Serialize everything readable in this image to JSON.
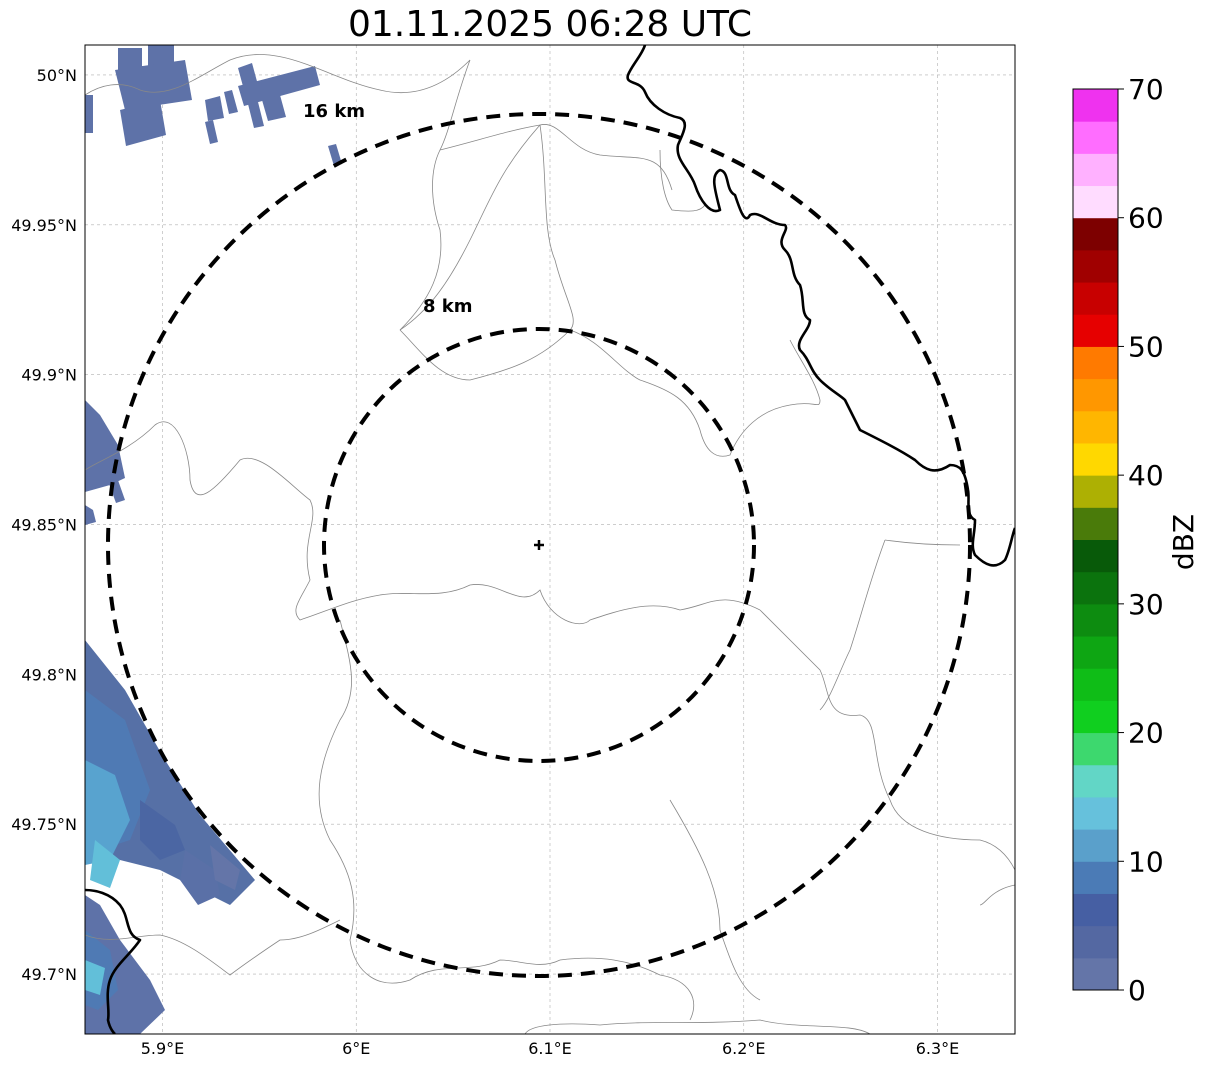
{
  "title": "01.11.2025 06:28 UTC",
  "map": {
    "lon_range": [
      5.86,
      6.34
    ],
    "lat_range": [
      49.68,
      50.01
    ],
    "lon_ticks": [
      {
        "value": 5.9,
        "label": "5.9°E"
      },
      {
        "value": 6.0,
        "label": "6°E"
      },
      {
        "value": 6.1,
        "label": "6.1°E"
      },
      {
        "value": 6.2,
        "label": "6.2°E"
      },
      {
        "value": 6.3,
        "label": "6.3°E"
      }
    ],
    "lat_ticks": [
      {
        "value": 50.0,
        "label": "50°N"
      },
      {
        "value": 49.95,
        "label": "49.95°N"
      },
      {
        "value": 49.9,
        "label": "49.9°N"
      },
      {
        "value": 49.85,
        "label": "49.85°N"
      },
      {
        "value": 49.8,
        "label": "49.8°N"
      },
      {
        "value": 49.75,
        "label": "49.75°N"
      },
      {
        "value": 49.7,
        "label": "49.7°N"
      }
    ],
    "grid": true,
    "radar_site": {
      "lon": 6.095,
      "lat": 49.843
    },
    "range_rings": [
      {
        "radius_km": 8,
        "label": "8 km"
      },
      {
        "radius_km": 16,
        "label": "16 km"
      }
    ]
  },
  "colorbar": {
    "label": "dBZ",
    "min": 0,
    "max": 70,
    "step": 2.5,
    "ticks": [
      "0",
      "10",
      "20",
      "30",
      "40",
      "50",
      "60",
      "70"
    ],
    "colors": [
      "#6475a8",
      "#5468a2",
      "#465fa3",
      "#4b7bb6",
      "#5aa0cb",
      "#66c1dc",
      "#62d6c6",
      "#3dd86e",
      "#10cf1f",
      "#0fbd17",
      "#0ea613",
      "#0d8c10",
      "#0b730d",
      "#085a09",
      "#4a7b0a",
      "#adb003",
      "#ffd800",
      "#ffb600",
      "#ff9700",
      "#ff7a00",
      "#e60000",
      "#c80000",
      "#a00000",
      "#7d0000",
      "#ffdcff",
      "#ffb1ff",
      "#ff6dff",
      "#ef32ef"
    ]
  }
}
